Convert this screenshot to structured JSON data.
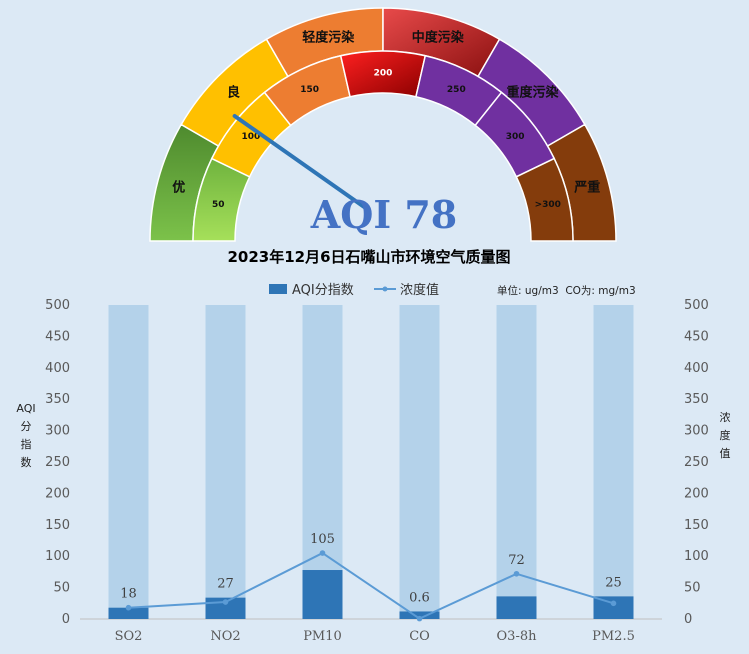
{
  "gauge": {
    "aqi_label": "AQI 78",
    "aqi_value": 78,
    "outer_bands": [
      {
        "label": "优",
        "color": "#5f9e3c"
      },
      {
        "label": "良",
        "color": "#ffc000"
      },
      {
        "label": "轻度污染",
        "color": "#ed7d31"
      },
      {
        "label": "中度污染",
        "color": "#c00000"
      },
      {
        "label": "重度污染",
        "color": "#7030a0"
      },
      {
        "label": "严重",
        "color": "#843c0c"
      }
    ],
    "inner_ticks": [
      {
        "label": "50",
        "color": "#92d050"
      },
      {
        "label": "100",
        "color": "#ffc000"
      },
      {
        "label": "150",
        "color": "#ed7d31"
      },
      {
        "label": "200",
        "color": "#c00000"
      },
      {
        "label": "250",
        "color": "#7030a0"
      },
      {
        "label": "300",
        "color": "#7030a0"
      },
      {
        "label": ">300",
        "color": "#843c0c"
      }
    ],
    "needle_color": "#2e75b6"
  },
  "chart_data": {
    "type": "bar",
    "title": "2023年12月6日石嘴山市环境空气质量图",
    "categories": [
      "SO2",
      "NO2",
      "PM10",
      "CO",
      "O3-8h",
      "PM2.5"
    ],
    "series": [
      {
        "name": "AQI分指数",
        "type": "bar",
        "values": [
          18,
          34,
          78,
          12,
          36,
          36
        ],
        "color": "#2e75b6"
      },
      {
        "name": "浓度值",
        "type": "line",
        "values": [
          18,
          27,
          105,
          0.6,
          72,
          25
        ],
        "color": "#5b9bd5"
      }
    ],
    "background_bar_value": 500,
    "background_bar_color": "#b4d2ea",
    "data_labels": [
      "18",
      "27",
      "105",
      "0.6",
      "72",
      "25"
    ],
    "ylabel": "AQI分指数",
    "y2label": "浓度值",
    "ylim": [
      0,
      500
    ],
    "y2lim": [
      0,
      500
    ],
    "yticks": [
      "0",
      "50",
      "100",
      "150",
      "200",
      "250",
      "300",
      "350",
      "400",
      "450",
      "500"
    ],
    "unit_note": "单位: ug/m3  CO为: mg/m3",
    "legend_position": "top"
  }
}
